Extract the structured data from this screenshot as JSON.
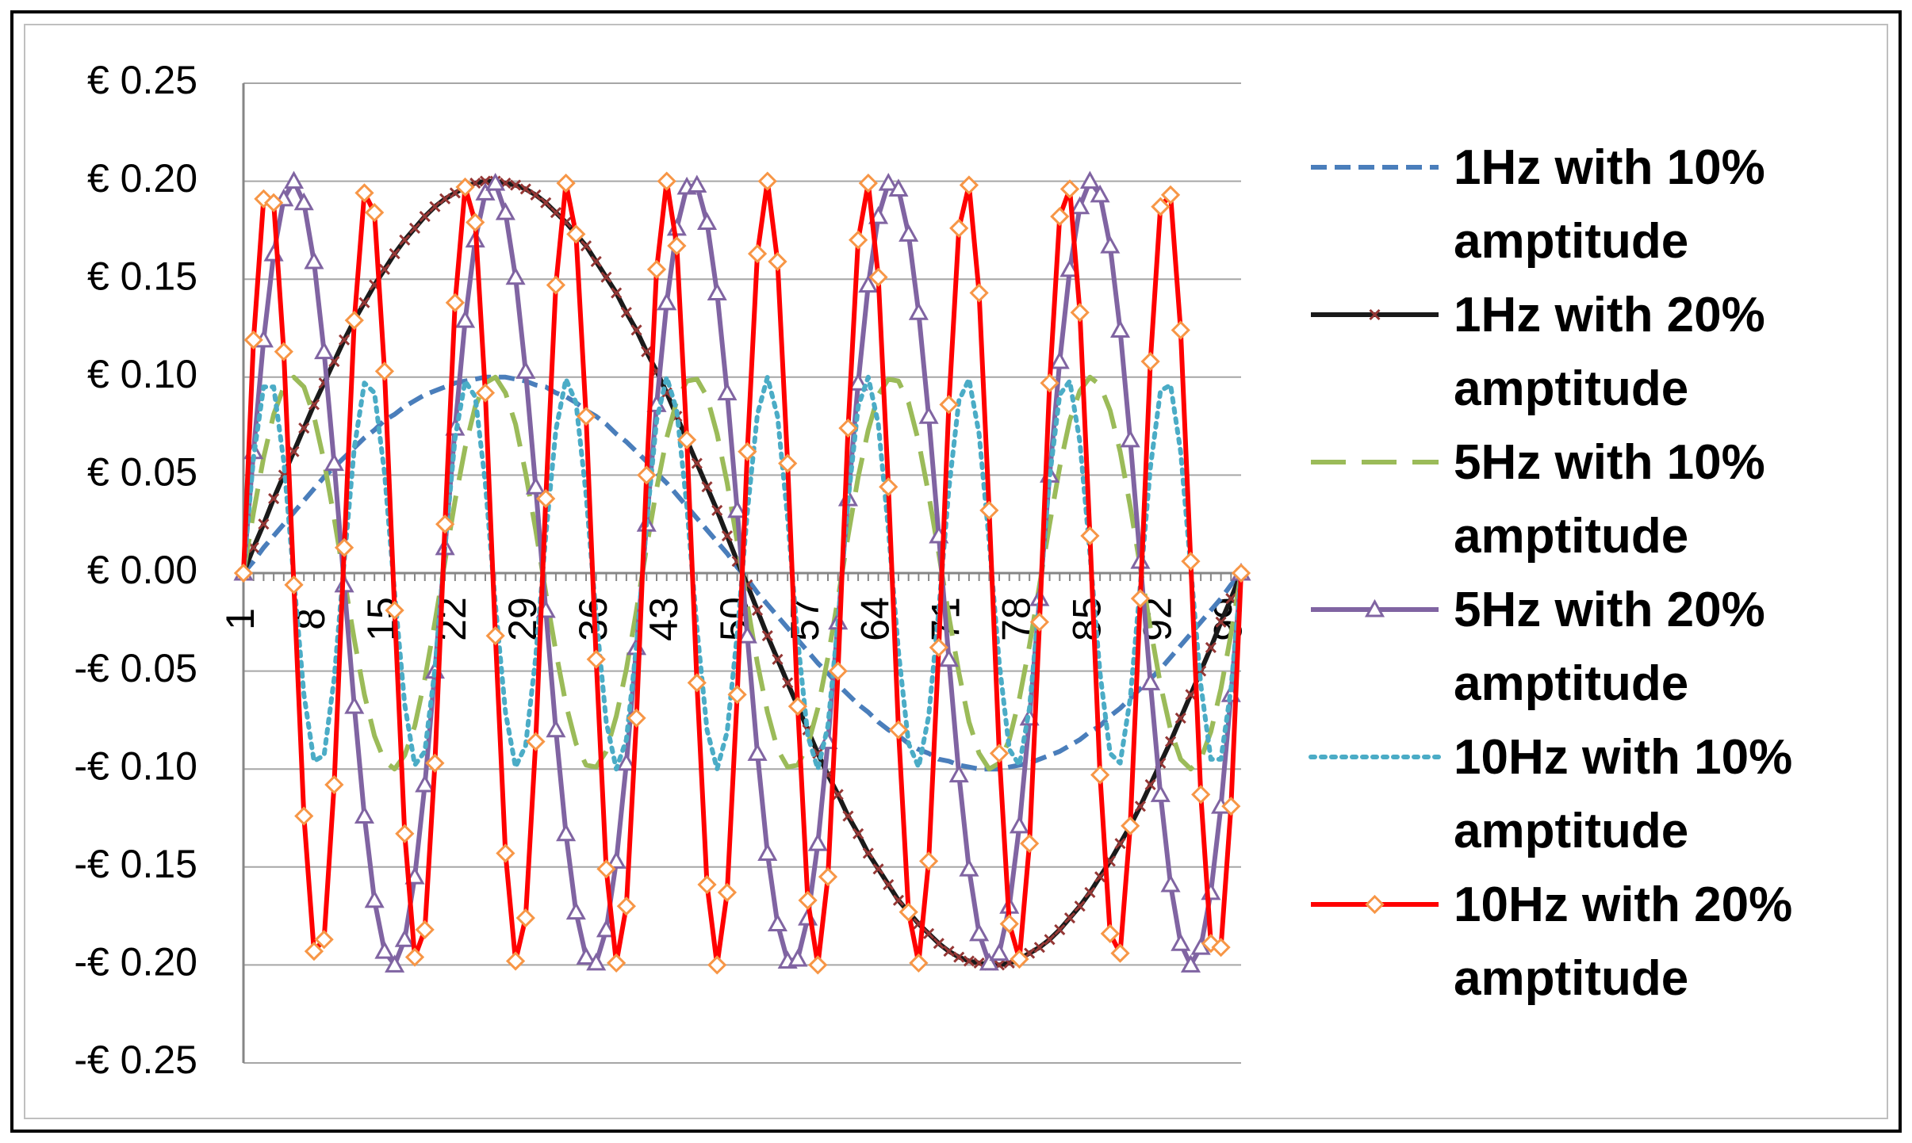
{
  "chart_data": {
    "type": "line",
    "x": [
      1,
      2,
      3,
      4,
      5,
      6,
      7,
      8,
      9,
      10,
      11,
      12,
      13,
      14,
      15,
      16,
      17,
      18,
      19,
      20,
      21,
      22,
      23,
      24,
      25,
      26,
      27,
      28,
      29,
      30,
      31,
      32,
      33,
      34,
      35,
      36,
      37,
      38,
      39,
      40,
      41,
      42,
      43,
      44,
      45,
      46,
      47,
      48,
      49,
      50,
      51,
      52,
      53,
      54,
      55,
      56,
      57,
      58,
      59,
      60,
      61,
      62,
      63,
      64,
      65,
      66,
      67,
      68,
      69,
      70,
      71,
      72,
      73,
      74,
      75,
      76,
      77,
      78,
      79,
      80,
      81,
      82,
      83,
      84,
      85,
      86,
      87,
      88,
      89,
      90,
      91,
      92,
      93,
      94,
      95,
      96,
      97,
      98,
      99,
      100
    ],
    "xlim": [
      1,
      100
    ],
    "xticks": [
      1,
      8,
      15,
      22,
      29,
      36,
      43,
      50,
      57,
      64,
      71,
      78,
      85,
      92,
      99
    ],
    "ylim": [
      -0.25,
      0.25
    ],
    "yticks": [
      {
        "value": -0.25,
        "label": "-€ 0.25"
      },
      {
        "value": -0.2,
        "label": "-€ 0.20"
      },
      {
        "value": -0.15,
        "label": "-€ 0.15"
      },
      {
        "value": -0.1,
        "label": "-€ 0.10"
      },
      {
        "value": -0.05,
        "label": "-€ 0.05"
      },
      {
        "value": 0,
        "label": "€ 0.00"
      },
      {
        "value": 0.05,
        "label": "€ 0.05"
      },
      {
        "value": 0.1,
        "label": "€ 0.10"
      },
      {
        "value": 0.15,
        "label": "€ 0.15"
      },
      {
        "value": 0.2,
        "label": "€ 0.20"
      },
      {
        "value": 0.25,
        "label": "€ 0.25"
      }
    ],
    "grid": true,
    "legend": "right",
    "series": [
      {
        "name": "1Hz with 10% amptitude",
        "color": "#4a7ebb",
        "dash": "dashed",
        "marker": "none",
        "values": [
          0,
          0.006,
          0.013,
          0.019,
          0.025,
          0.031,
          0.037,
          0.043,
          0.049,
          0.054,
          0.059,
          0.064,
          0.069,
          0.073,
          0.078,
          0.081,
          0.085,
          0.088,
          0.091,
          0.093,
          0.095,
          0.097,
          0.098,
          0.099,
          0.1,
          0.1,
          0.1,
          0.099,
          0.098,
          0.096,
          0.095,
          0.092,
          0.09,
          0.087,
          0.083,
          0.08,
          0.076,
          0.071,
          0.067,
          0.062,
          0.057,
          0.051,
          0.046,
          0.04,
          0.034,
          0.028,
          0.022,
          0.016,
          0.01,
          0.003,
          -0.003,
          -0.01,
          -0.016,
          -0.022,
          -0.028,
          -0.034,
          -0.04,
          -0.046,
          -0.051,
          -0.057,
          -0.062,
          -0.067,
          -0.071,
          -0.076,
          -0.08,
          -0.083,
          -0.087,
          -0.09,
          -0.092,
          -0.095,
          -0.096,
          -0.098,
          -0.099,
          -0.1,
          -0.1,
          -0.1,
          -0.099,
          -0.098,
          -0.097,
          -0.095,
          -0.093,
          -0.091,
          -0.088,
          -0.085,
          -0.081,
          -0.078,
          -0.073,
          -0.069,
          -0.064,
          -0.059,
          -0.054,
          -0.049,
          -0.043,
          -0.037,
          -0.031,
          -0.025,
          -0.019,
          -0.013,
          -0.006,
          0
        ]
      },
      {
        "name": "1Hz with 20% amptitude",
        "color": "#1a1a1a",
        "dash": "solid",
        "marker": "x",
        "marker_color": "#953735",
        "values": [
          0,
          0.013,
          0.025,
          0.038,
          0.05,
          0.062,
          0.074,
          0.086,
          0.097,
          0.108,
          0.119,
          0.129,
          0.138,
          0.147,
          0.155,
          0.163,
          0.17,
          0.176,
          0.182,
          0.187,
          0.191,
          0.194,
          0.197,
          0.199,
          0.2,
          0.2,
          0.199,
          0.198,
          0.196,
          0.193,
          0.189,
          0.184,
          0.179,
          0.173,
          0.167,
          0.159,
          0.151,
          0.143,
          0.133,
          0.124,
          0.113,
          0.103,
          0.092,
          0.08,
          0.068,
          0.056,
          0.044,
          0.032,
          0.019,
          0.006,
          -0.006,
          -0.019,
          -0.032,
          -0.044,
          -0.056,
          -0.068,
          -0.08,
          -0.092,
          -0.103,
          -0.113,
          -0.124,
          -0.133,
          -0.143,
          -0.151,
          -0.159,
          -0.167,
          -0.173,
          -0.179,
          -0.184,
          -0.189,
          -0.193,
          -0.196,
          -0.198,
          -0.199,
          -0.2,
          -0.2,
          -0.199,
          -0.197,
          -0.194,
          -0.191,
          -0.187,
          -0.182,
          -0.176,
          -0.17,
          -0.163,
          -0.155,
          -0.147,
          -0.138,
          -0.129,
          -0.119,
          -0.108,
          -0.097,
          -0.086,
          -0.074,
          -0.062,
          -0.05,
          -0.038,
          -0.025,
          -0.013,
          0
        ]
      },
      {
        "name": "5Hz with 10% amptitude",
        "color": "#9bbb59",
        "dash": "long-dash",
        "marker": "none",
        "values": [
          0,
          0.031,
          0.059,
          0.081,
          0.095,
          0.1,
          0.095,
          0.08,
          0.057,
          0.028,
          -0.003,
          -0.034,
          -0.062,
          -0.083,
          -0.096,
          -0.1,
          -0.093,
          -0.078,
          -0.054,
          -0.025,
          0.006,
          0.037,
          0.064,
          0.085,
          0.097,
          0.1,
          0.092,
          0.076,
          0.051,
          0.022,
          -0.01,
          -0.04,
          -0.067,
          -0.087,
          -0.098,
          -0.099,
          -0.091,
          -0.073,
          -0.049,
          -0.019,
          0.013,
          0.043,
          0.069,
          0.088,
          0.098,
          0.099,
          0.09,
          0.071,
          0.046,
          0.016,
          -0.016,
          -0.046,
          -0.071,
          -0.09,
          -0.099,
          -0.098,
          -0.088,
          -0.069,
          -0.043,
          -0.013,
          0.019,
          0.049,
          0.073,
          0.091,
          0.099,
          0.098,
          0.087,
          0.067,
          0.04,
          0.01,
          -0.022,
          -0.051,
          -0.076,
          -0.092,
          -0.1,
          -0.097,
          -0.085,
          -0.064,
          -0.037,
          -0.006,
          0.025,
          0.054,
          0.078,
          0.093,
          0.1,
          0.096,
          0.083,
          0.062,
          0.034,
          0.003,
          -0.028,
          -0.057,
          -0.08,
          -0.095,
          -0.1,
          -0.095,
          -0.081,
          -0.059,
          -0.031,
          0
        ]
      },
      {
        "name": "5Hz with 20% amptitude",
        "color": "#8064a2",
        "dash": "solid",
        "marker": "triangle",
        "marker_color": "#8064a2",
        "values": [
          0,
          0.062,
          0.119,
          0.163,
          0.191,
          0.2,
          0.189,
          0.159,
          0.113,
          0.056,
          -0.006,
          -0.068,
          -0.124,
          -0.167,
          -0.193,
          -0.2,
          -0.187,
          -0.155,
          -0.108,
          -0.05,
          0.013,
          0.074,
          0.129,
          0.17,
          0.194,
          0.199,
          0.184,
          0.151,
          0.103,
          0.044,
          -0.019,
          -0.08,
          -0.133,
          -0.173,
          -0.196,
          -0.199,
          -0.182,
          -0.147,
          -0.097,
          -0.038,
          0.025,
          0.086,
          0.138,
          0.176,
          0.197,
          0.198,
          0.179,
          0.143,
          0.092,
          0.032,
          -0.032,
          -0.092,
          -0.143,
          -0.179,
          -0.198,
          -0.197,
          -0.176,
          -0.138,
          -0.086,
          -0.025,
          0.038,
          0.097,
          0.147,
          0.182,
          0.199,
          0.196,
          0.173,
          0.133,
          0.08,
          0.019,
          -0.044,
          -0.103,
          -0.151,
          -0.184,
          -0.199,
          -0.194,
          -0.17,
          -0.129,
          -0.074,
          -0.013,
          0.05,
          0.108,
          0.155,
          0.187,
          0.2,
          0.193,
          0.167,
          0.124,
          0.068,
          0.006,
          -0.056,
          -0.113,
          -0.159,
          -0.189,
          -0.2,
          -0.191,
          -0.163,
          -0.119,
          -0.062,
          0
        ]
      },
      {
        "name": "10Hz with 10% amptitude",
        "color": "#4bacc6",
        "dash": "dotted",
        "marker": "none",
        "values": [
          0,
          0.059,
          0.095,
          0.095,
          0.057,
          -0.003,
          -0.062,
          -0.096,
          -0.093,
          -0.054,
          0.006,
          0.064,
          0.097,
          0.092,
          0.051,
          -0.01,
          -0.067,
          -0.098,
          -0.091,
          -0.049,
          0.013,
          0.069,
          0.098,
          0.09,
          0.046,
          -0.016,
          -0.071,
          -0.099,
          -0.088,
          -0.043,
          0.019,
          0.073,
          0.099,
          0.087,
          0.04,
          -0.022,
          -0.076,
          -0.1,
          -0.085,
          -0.037,
          0.025,
          0.078,
          0.1,
          0.083,
          0.034,
          -0.028,
          -0.08,
          -0.1,
          -0.081,
          -0.031,
          0.031,
          0.081,
          0.1,
          0.08,
          0.028,
          -0.034,
          -0.083,
          -0.1,
          -0.078,
          -0.025,
          0.037,
          0.085,
          0.1,
          0.076,
          0.022,
          -0.04,
          -0.087,
          -0.099,
          -0.073,
          -0.019,
          0.043,
          0.088,
          0.099,
          0.071,
          0.016,
          -0.046,
          -0.09,
          -0.098,
          -0.069,
          -0.013,
          0.049,
          0.091,
          0.098,
          0.067,
          0.01,
          -0.051,
          -0.092,
          -0.097,
          -0.064,
          -0.006,
          0.054,
          0.093,
          0.096,
          0.062,
          0.003,
          -0.057,
          -0.095,
          -0.095,
          -0.059,
          0
        ]
      },
      {
        "name": "10Hz with 20% amptitude",
        "color": "#ff0000",
        "dash": "solid",
        "marker": "diamond",
        "marker_color": "#f79646",
        "values": [
          0,
          0.119,
          0.191,
          0.189,
          0.113,
          -0.006,
          -0.124,
          -0.193,
          -0.187,
          -0.108,
          0.013,
          0.129,
          0.194,
          0.184,
          0.103,
          -0.019,
          -0.133,
          -0.196,
          -0.182,
          -0.097,
          0.025,
          0.138,
          0.197,
          0.179,
          0.092,
          -0.032,
          -0.143,
          -0.198,
          -0.176,
          -0.086,
          0.038,
          0.147,
          0.199,
          0.173,
          0.08,
          -0.044,
          -0.151,
          -0.199,
          -0.17,
          -0.074,
          0.05,
          0.155,
          0.2,
          0.167,
          0.068,
          -0.056,
          -0.159,
          -0.2,
          -0.163,
          -0.062,
          0.062,
          0.163,
          0.2,
          0.159,
          0.056,
          -0.068,
          -0.167,
          -0.2,
          -0.155,
          -0.05,
          0.074,
          0.17,
          0.199,
          0.151,
          0.044,
          -0.08,
          -0.173,
          -0.199,
          -0.147,
          -0.038,
          0.086,
          0.176,
          0.198,
          0.143,
          0.032,
          -0.092,
          -0.179,
          -0.197,
          -0.138,
          -0.025,
          0.097,
          0.182,
          0.196,
          0.133,
          0.019,
          -0.103,
          -0.184,
          -0.194,
          -0.129,
          -0.013,
          0.108,
          0.187,
          0.193,
          0.124,
          0.006,
          -0.113,
          -0.189,
          -0.191,
          -0.119,
          0
        ]
      }
    ]
  }
}
